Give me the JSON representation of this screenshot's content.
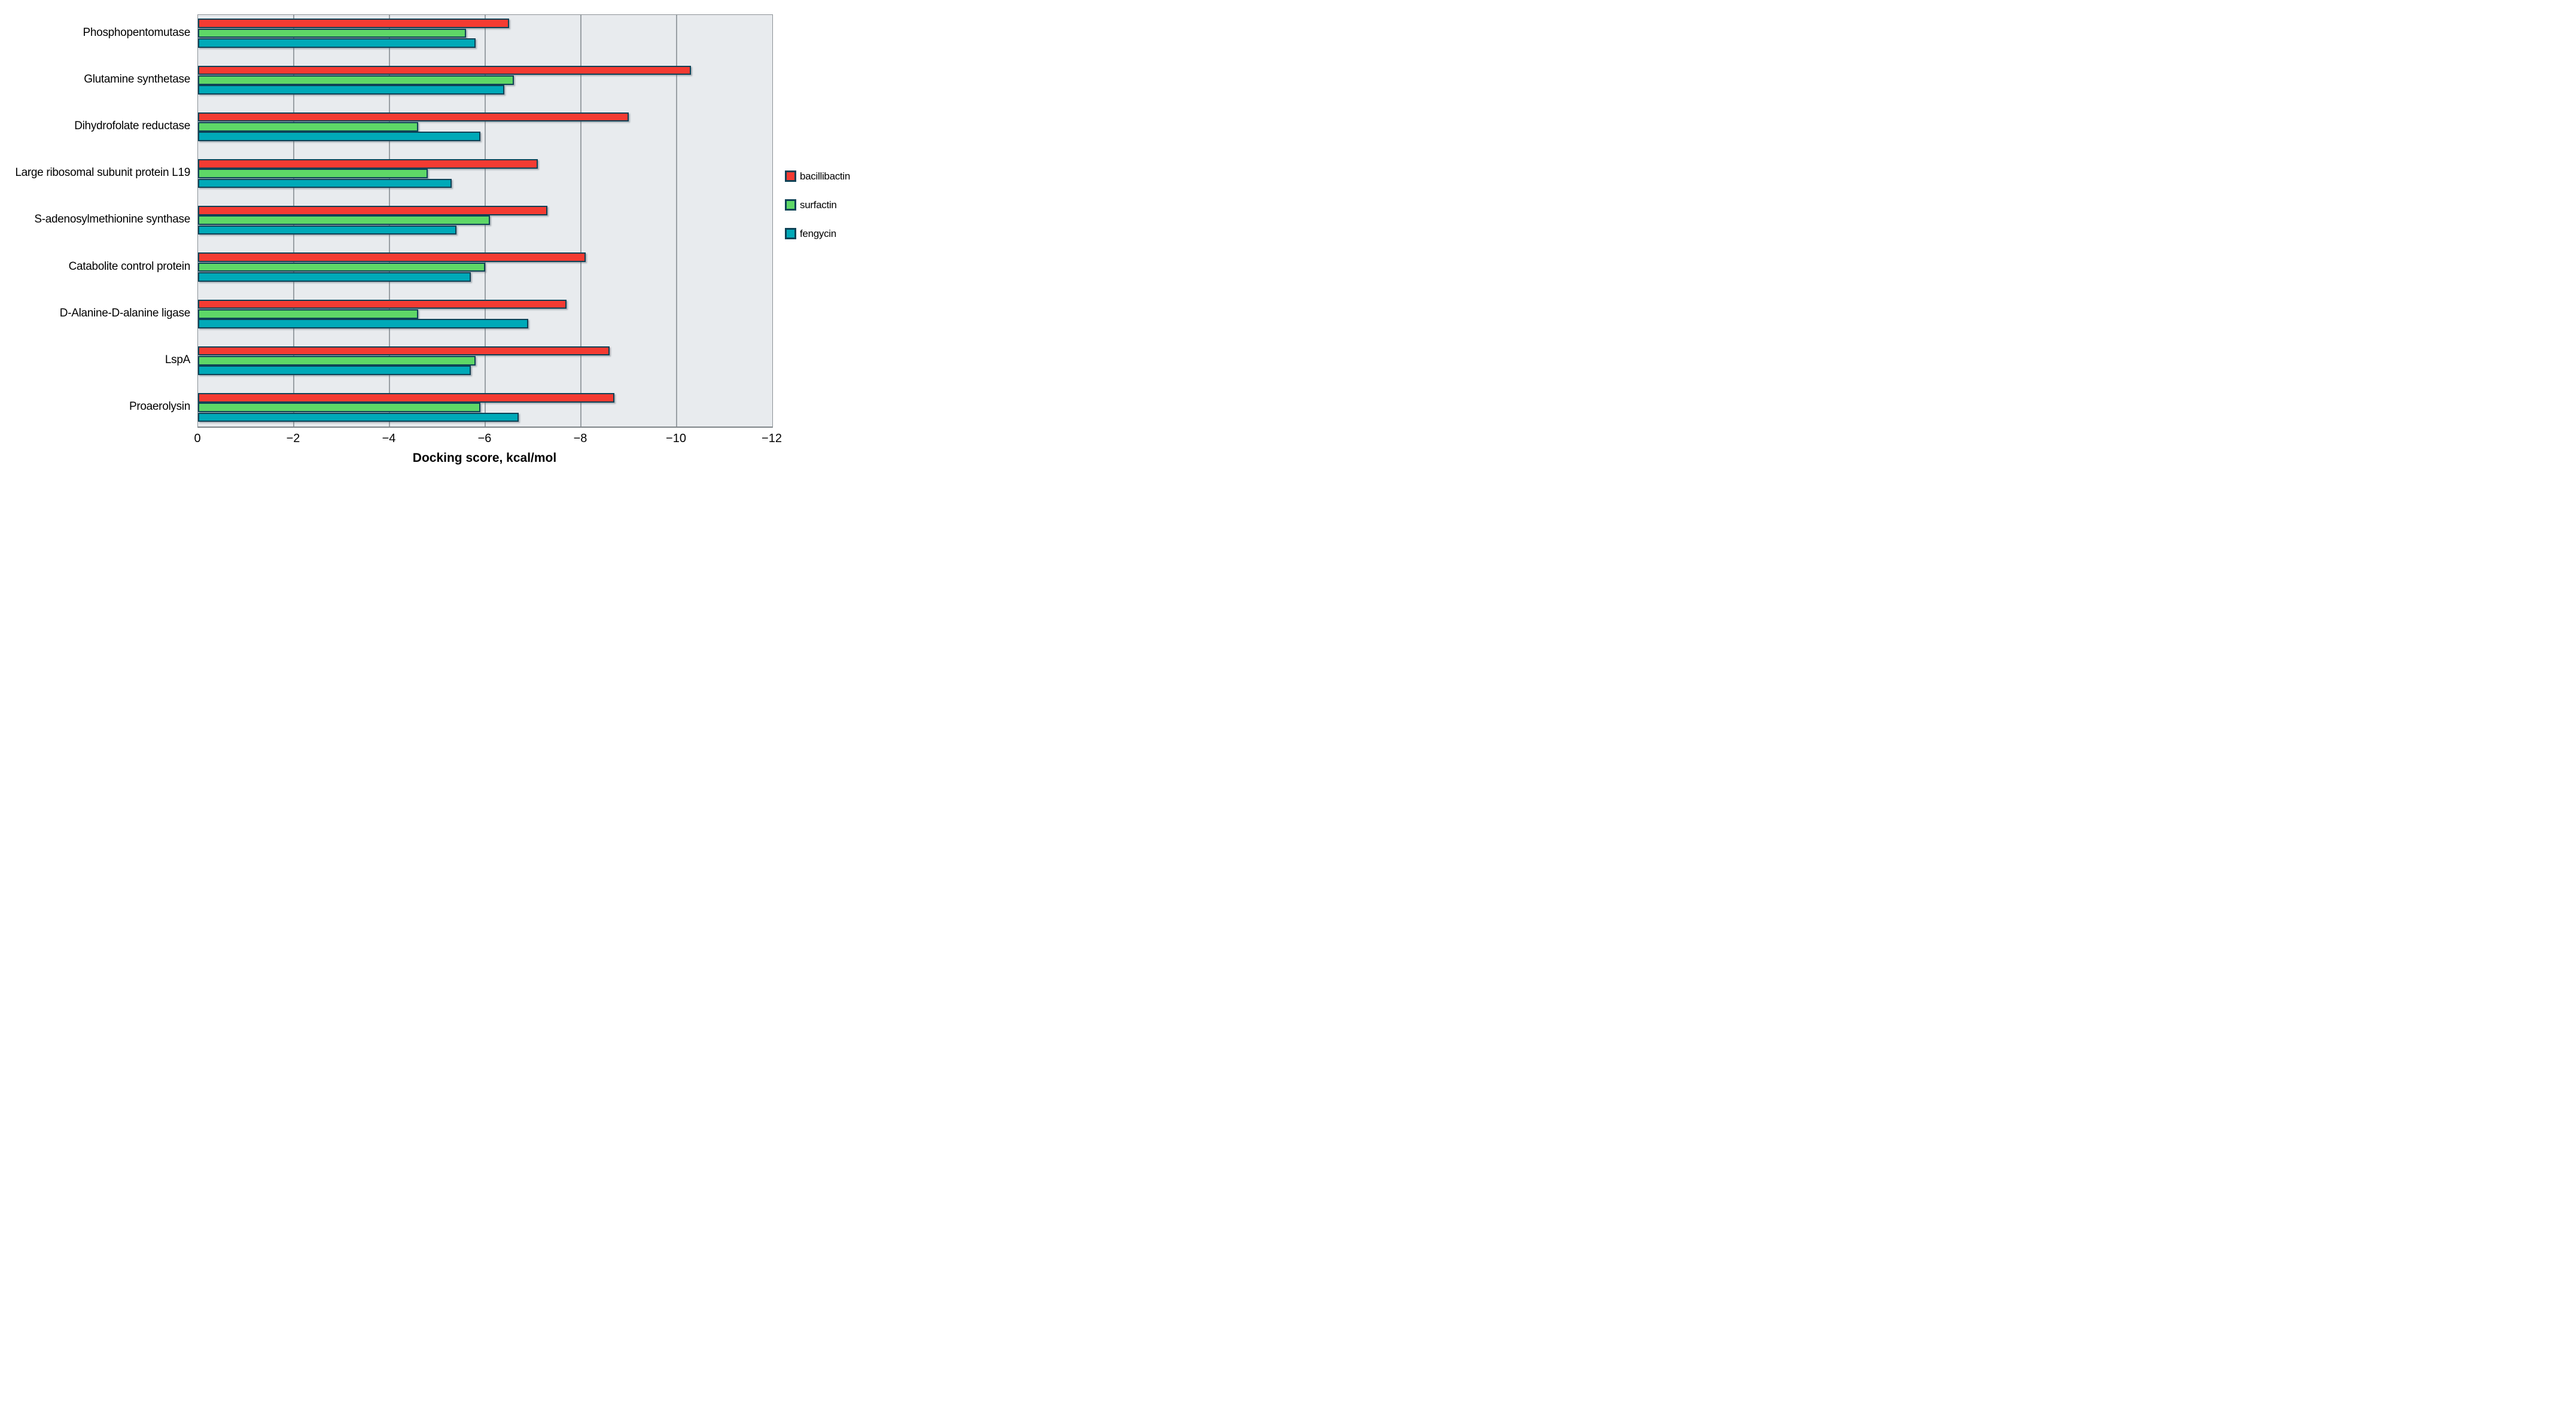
{
  "figure": {
    "xlabel": "Docking score, kcal/mol",
    "x_ticks": [
      "0",
      "−2",
      "−4",
      "−6",
      "−8",
      "−10",
      "−12"
    ]
  },
  "colors": {
    "bacillibactin": "#f43b32",
    "surfactin": "#5ed767",
    "fengycin": "#00a9b8",
    "bar_border": "#0e4256",
    "plot_background": "#e8ebee",
    "gridline": "#999fa4"
  },
  "legend": {
    "items": [
      {
        "label": "bacillibactin",
        "color": "#f43b32"
      },
      {
        "label": "surfactin",
        "color": "#5ed767"
      },
      {
        "label": "fengycin",
        "color": "#00a9b8"
      }
    ]
  },
  "chart_data": {
    "type": "bar",
    "orientation": "horizontal",
    "title": "",
    "xlabel": "Docking score, kcal/mol",
    "ylabel": "",
    "xlim": [
      0,
      -12
    ],
    "x_tick_step": -2,
    "grid": true,
    "legend_position": "right-center",
    "categories": [
      "Phosphopentomutase",
      "Glutamine synthetase",
      "Dihydrofolate reductase",
      "Large ribosomal subunit protein L19",
      "S-adenosylmethionine synthase",
      "Catabolite control protein",
      "D-Alanine-D-alanine ligase",
      "LspA",
      "Proaerolysin"
    ],
    "series": [
      {
        "name": "bacillibactin",
        "color": "#f43b32",
        "values": [
          -6.5,
          -10.3,
          -9.0,
          -7.1,
          -7.3,
          -8.1,
          -7.7,
          -8.6,
          -8.7
        ]
      },
      {
        "name": "surfactin",
        "color": "#5ed767",
        "values": [
          -5.6,
          -6.6,
          -4.6,
          -4.8,
          -6.1,
          -6.0,
          -4.6,
          -5.8,
          -5.9
        ]
      },
      {
        "name": "fengycin",
        "color": "#00a9b8",
        "values": [
          -5.8,
          -6.4,
          -5.9,
          -5.3,
          -5.4,
          -5.7,
          -6.9,
          -5.7,
          -6.7
        ]
      }
    ]
  }
}
